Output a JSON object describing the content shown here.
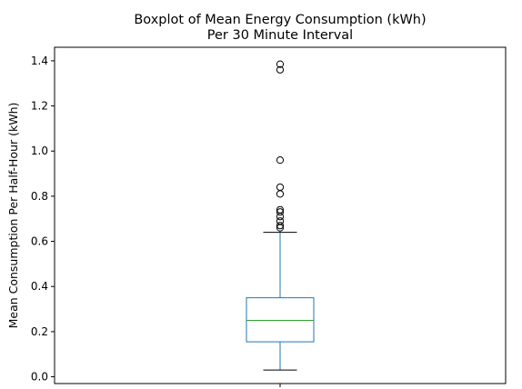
{
  "chart_data": {
    "type": "boxplot",
    "title_line1": "Boxplot of Mean Energy Consumption (kWh)",
    "title_line2": "Per 30 Minute Interval",
    "xlabel": "",
    "ylabel": "Mean Consumption Per Half-Hour (kWh)",
    "ylim": [
      -0.03,
      1.46
    ],
    "yticks": [
      0.0,
      0.2,
      0.4,
      0.6,
      0.8,
      1.0,
      1.2,
      1.4
    ],
    "ytick_labels": [
      "0.0",
      "0.2",
      "0.4",
      "0.6",
      "0.8",
      "1.0",
      "1.2",
      "1.4"
    ],
    "grid": false,
    "box": {
      "whisker_low": 0.03,
      "q1": 0.155,
      "median": 0.25,
      "q3": 0.35,
      "whisker_high": 0.64
    },
    "outliers": [
      0.66,
      0.67,
      0.69,
      0.71,
      0.73,
      0.74,
      0.81,
      0.84,
      0.96,
      1.36,
      1.385
    ],
    "colors": {
      "box": "#1f77b4",
      "median": "#2ca02c",
      "caps": "#000000",
      "outlier_edge": "#000000"
    }
  }
}
